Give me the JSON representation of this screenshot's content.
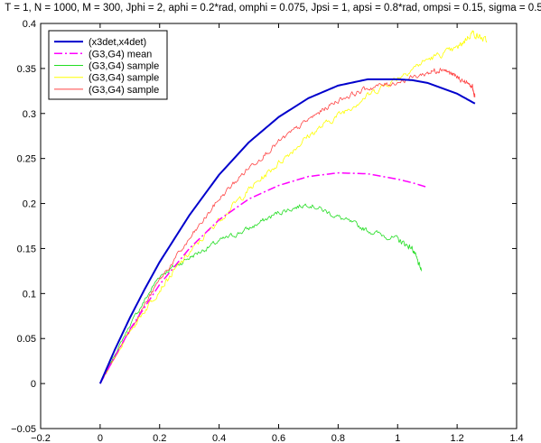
{
  "chart_data": {
    "type": "line",
    "title": "T = 1, N = 1000,  M = 300, Jphi = 2, aphi =  0.2*rad, omphi = 0.075, Jpsi = 1, apsi = 0.8*rad, ompsi = 0.15, sigma = 0.5",
    "xlim": [
      -0.2,
      1.4
    ],
    "ylim": [
      -0.05,
      0.4
    ],
    "xticks": [
      -0.2,
      0,
      0.2,
      0.4,
      0.6,
      0.8,
      1,
      1.2,
      1.4
    ],
    "yticks": [
      -0.05,
      0,
      0.05,
      0.1,
      0.15,
      0.2,
      0.25,
      0.3,
      0.35,
      0.4
    ],
    "xtick_labels": [
      "−0.2",
      "0",
      "0.2",
      "0.4",
      "0.6",
      "0.8",
      "1",
      "1.2",
      "1.4"
    ],
    "ytick_labels": [
      "−0.05",
      "0",
      "0.05",
      "0.1",
      "0.15",
      "0.2",
      "0.25",
      "0.3",
      "0.35",
      "0.4"
    ],
    "grid": false,
    "legend_position": "top-left",
    "series": [
      {
        "name": "(x3det,x4det)",
        "color": "#0000cc",
        "style": "solid",
        "width": 2,
        "noise": 0,
        "x": [
          0,
          0.05,
          0.1,
          0.15,
          0.2,
          0.3,
          0.4,
          0.5,
          0.6,
          0.7,
          0.8,
          0.9,
          1.0,
          1.05,
          1.1,
          1.15,
          1.2,
          1.26
        ],
        "y": [
          0,
          0.038,
          0.073,
          0.105,
          0.135,
          0.187,
          0.232,
          0.268,
          0.296,
          0.317,
          0.331,
          0.338,
          0.338,
          0.337,
          0.334,
          0.328,
          0.322,
          0.311
        ]
      },
      {
        "name": "(G3,G4) mean",
        "color": "#ff00ff",
        "style": "dashdot",
        "width": 1.5,
        "noise": 0,
        "x": [
          0,
          0.1,
          0.2,
          0.3,
          0.4,
          0.5,
          0.6,
          0.7,
          0.8,
          0.9,
          1.0,
          1.05,
          1.1
        ],
        "y": [
          0,
          0.06,
          0.11,
          0.15,
          0.182,
          0.205,
          0.22,
          0.23,
          0.234,
          0.233,
          0.227,
          0.223,
          0.218
        ]
      },
      {
        "name": "(G3,G4)  sample",
        "color": "#22dd22",
        "style": "solid",
        "width": 0.8,
        "noise": 0.005,
        "x": [
          0,
          0.1,
          0.2,
          0.3,
          0.4,
          0.5,
          0.6,
          0.7,
          0.8,
          0.9,
          1.0,
          1.05,
          1.08
        ],
        "y": [
          0,
          0.065,
          0.12,
          0.14,
          0.158,
          0.172,
          0.19,
          0.2,
          0.185,
          0.17,
          0.16,
          0.15,
          0.125
        ]
      },
      {
        "name": "(G3,G4)  sample",
        "color": "#ffff00",
        "style": "solid",
        "width": 0.8,
        "noise": 0.006,
        "x": [
          0,
          0.1,
          0.2,
          0.3,
          0.4,
          0.5,
          0.6,
          0.7,
          0.8,
          0.9,
          1.0,
          1.1,
          1.2,
          1.25,
          1.3
        ],
        "y": [
          0,
          0.058,
          0.105,
          0.145,
          0.182,
          0.215,
          0.245,
          0.275,
          0.298,
          0.32,
          0.34,
          0.36,
          0.372,
          0.39,
          0.38
        ]
      },
      {
        "name": "(G3,G4)  sample",
        "color": "#ff4444",
        "style": "solid",
        "width": 0.8,
        "noise": 0.005,
        "x": [
          0,
          0.1,
          0.2,
          0.3,
          0.4,
          0.5,
          0.6,
          0.7,
          0.8,
          0.9,
          1.0,
          1.1,
          1.15,
          1.2,
          1.25,
          1.26
        ],
        "y": [
          0,
          0.06,
          0.115,
          0.16,
          0.205,
          0.24,
          0.268,
          0.293,
          0.315,
          0.328,
          0.335,
          0.345,
          0.35,
          0.34,
          0.33,
          0.318
        ]
      }
    ]
  }
}
